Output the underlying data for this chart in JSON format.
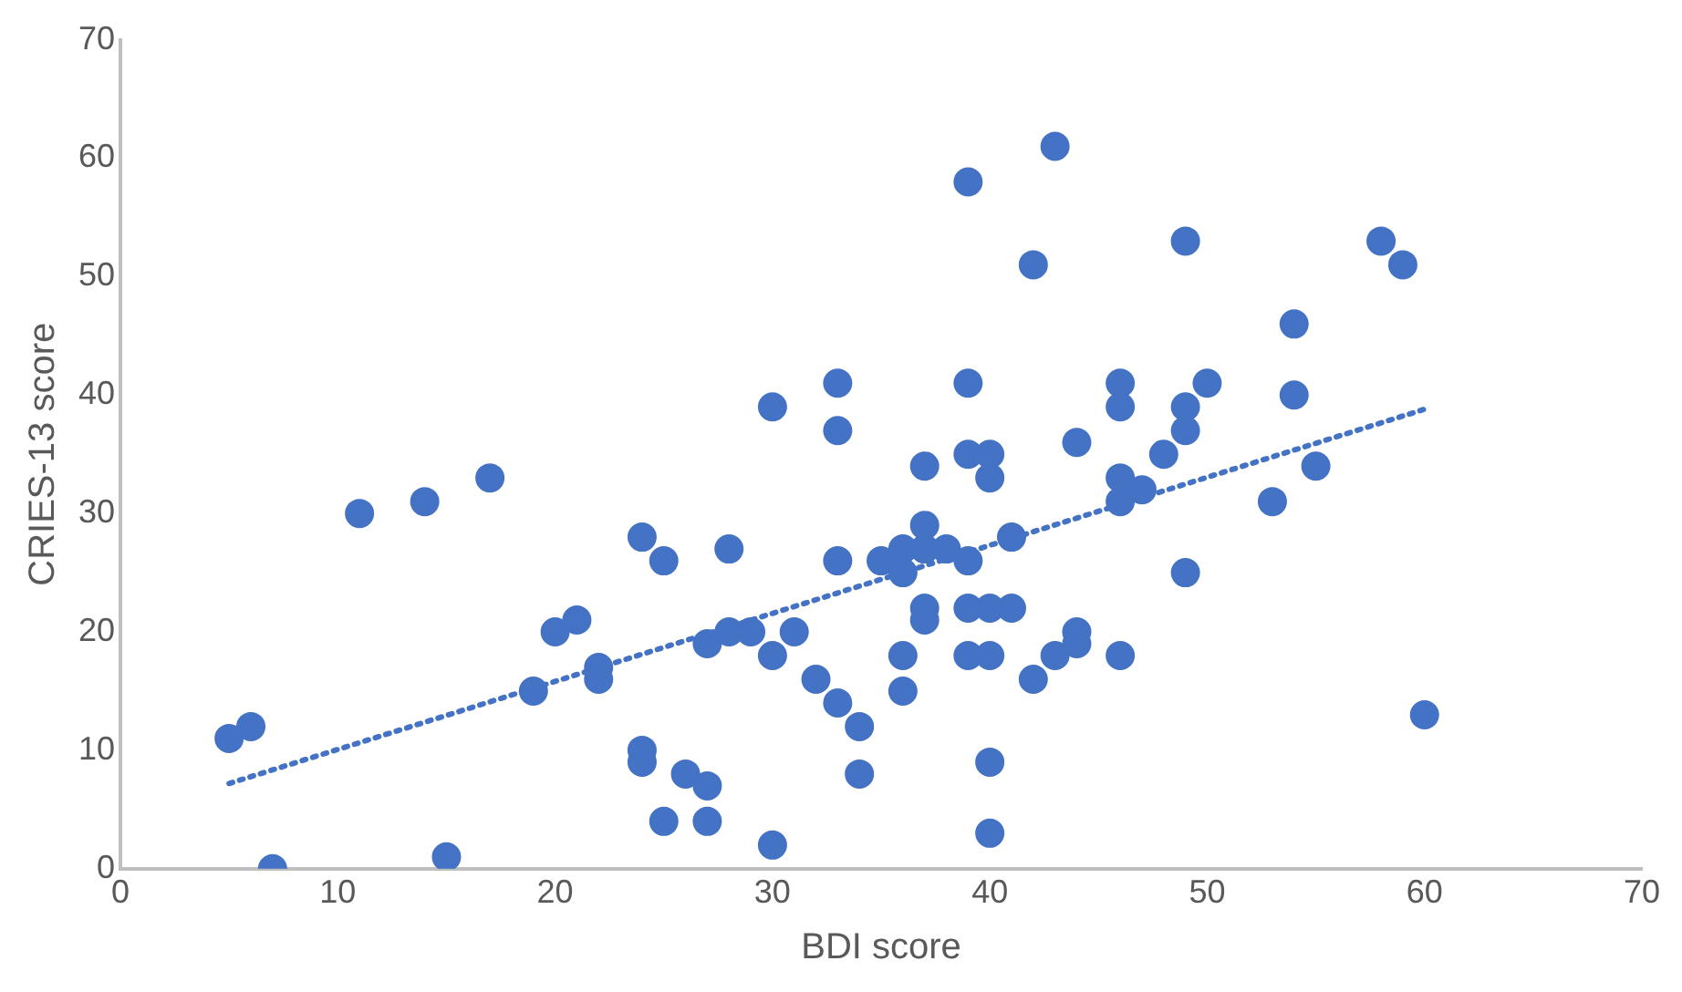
{
  "chart_data": {
    "type": "scatter",
    "xlabel": "BDI score",
    "ylabel": "CRIES-13 score",
    "xlim": [
      0,
      70
    ],
    "ylim": [
      0,
      70
    ],
    "xticks": [
      0,
      10,
      20,
      30,
      40,
      50,
      60,
      70
    ],
    "yticks": [
      0,
      10,
      20,
      30,
      40,
      50,
      60,
      70
    ],
    "grid": false,
    "legend": false,
    "series": [
      {
        "marker": "circle",
        "color": "#4472c4",
        "x": [
          5,
          6,
          7,
          11,
          14,
          15,
          17,
          19,
          20,
          21,
          22,
          22,
          24,
          24,
          24,
          25,
          25,
          26,
          27,
          27,
          27,
          28,
          28,
          29,
          30,
          30,
          30,
          31,
          32,
          33,
          33,
          33,
          33,
          34,
          34,
          35,
          36,
          36,
          36,
          36,
          37,
          37,
          37,
          37,
          37,
          38,
          39,
          39,
          39,
          39,
          39,
          39,
          40,
          40,
          40,
          40,
          40,
          40,
          41,
          41,
          42,
          42,
          43,
          43,
          44,
          44,
          44,
          46,
          46,
          46,
          46,
          46,
          47,
          48,
          49,
          49,
          49,
          49,
          50,
          53,
          54,
          54,
          55,
          58,
          59,
          60
        ],
        "values": [
          11,
          12,
          0,
          30,
          31,
          1,
          33,
          15,
          20,
          21,
          17,
          16,
          28,
          10,
          9,
          26,
          4,
          8,
          7,
          4,
          19,
          27,
          20,
          20,
          39,
          18,
          2,
          20,
          16,
          41,
          37,
          26,
          14,
          12,
          8,
          26,
          27,
          25,
          18,
          15,
          34,
          29,
          27,
          22,
          21,
          27,
          58,
          41,
          35,
          26,
          22,
          18,
          35,
          33,
          22,
          18,
          9,
          3,
          28,
          22,
          51,
          16,
          61,
          18,
          36,
          20,
          19,
          41,
          39,
          33,
          31,
          18,
          32,
          35,
          53,
          39,
          37,
          25,
          41,
          31,
          46,
          40,
          34,
          53,
          51,
          13
        ]
      },
      {
        "type": "line",
        "marker": "none",
        "color": "#4472c4",
        "line_style": "dotted",
        "x": [
          5,
          60
        ],
        "values": [
          7.2,
          38.8
        ]
      }
    ]
  }
}
